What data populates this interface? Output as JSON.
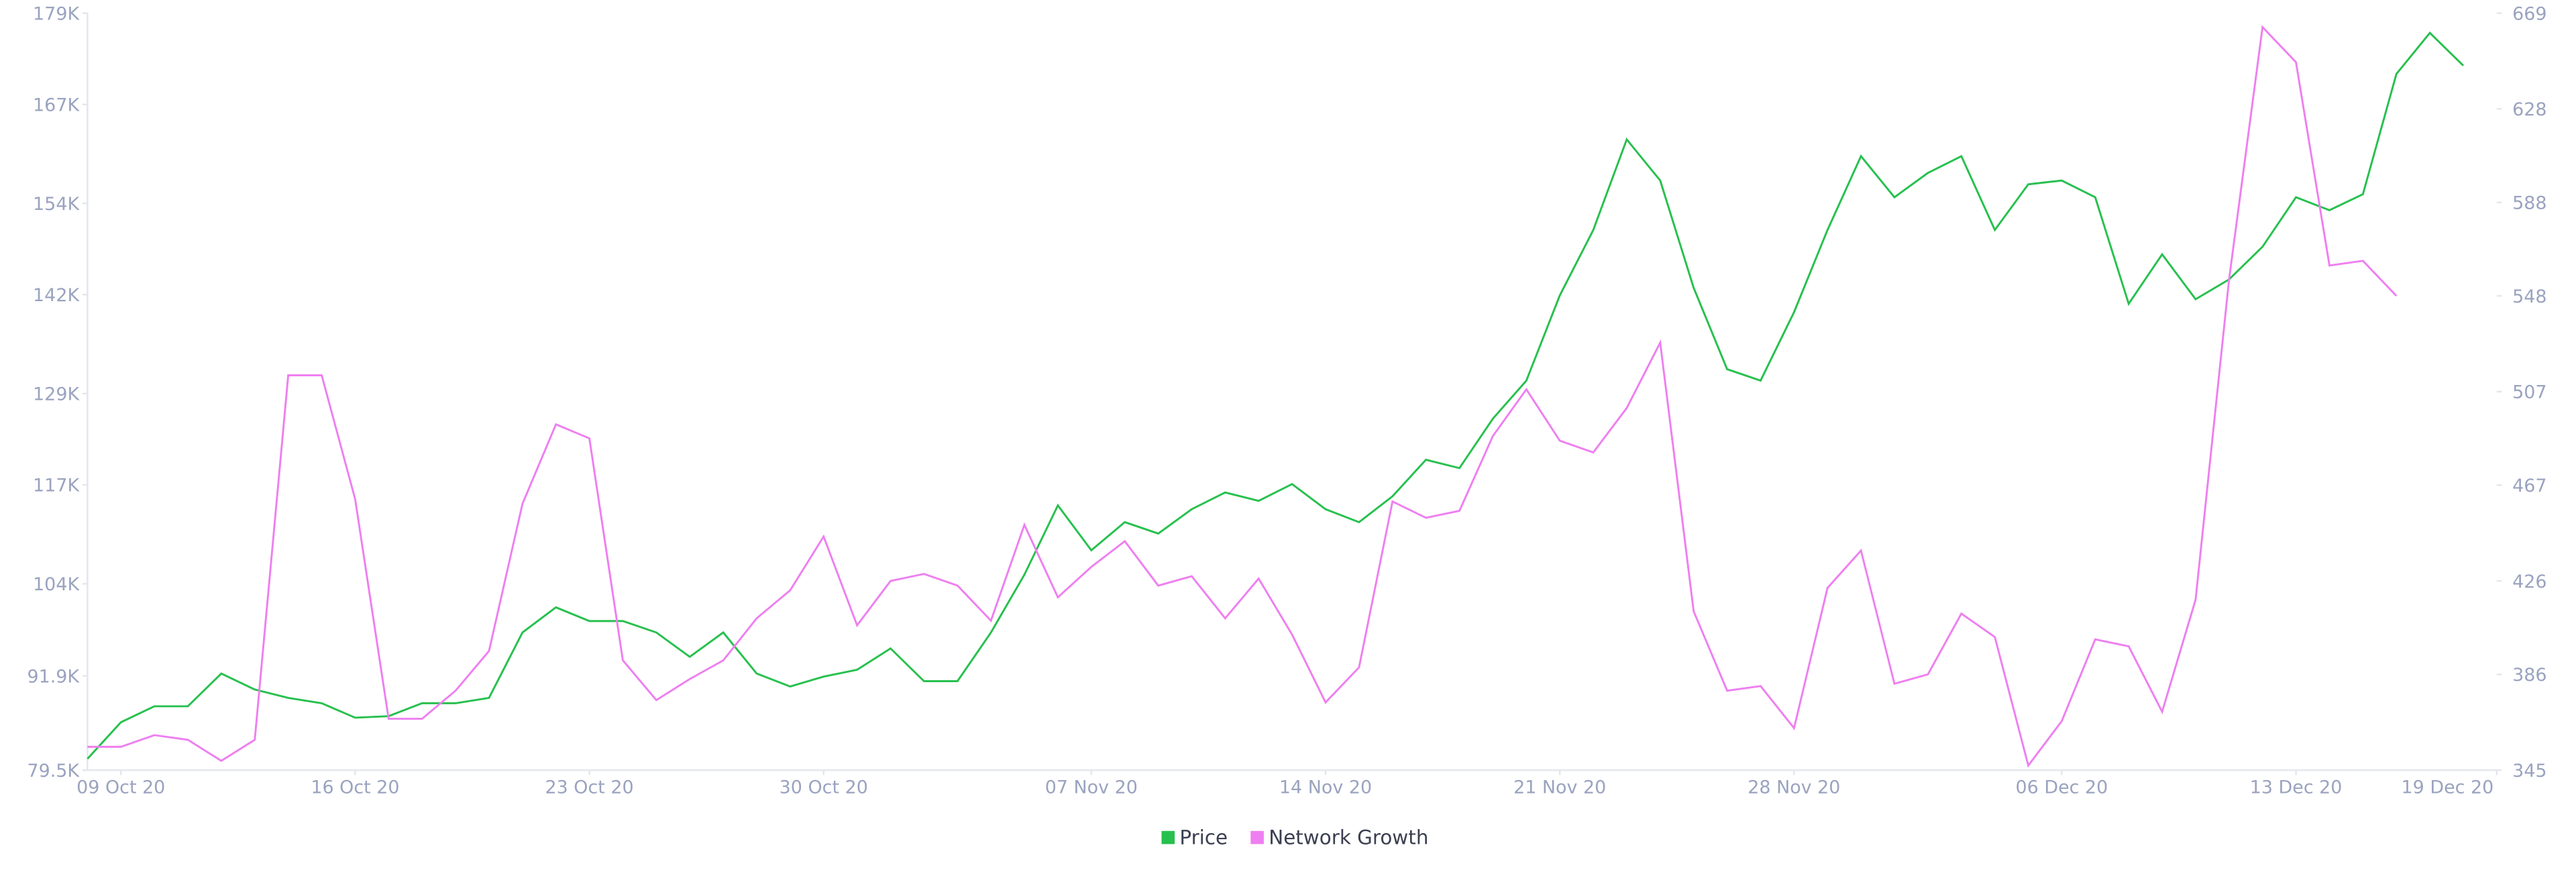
{
  "chart_data": {
    "type": "line",
    "x": [
      "2020-10-08",
      "2020-10-09",
      "2020-10-10",
      "2020-10-11",
      "2020-10-12",
      "2020-10-13",
      "2020-10-14",
      "2020-10-15",
      "2020-10-16",
      "2020-10-17",
      "2020-10-18",
      "2020-10-19",
      "2020-10-20",
      "2020-10-21",
      "2020-10-22",
      "2020-10-23",
      "2020-10-24",
      "2020-10-25",
      "2020-10-26",
      "2020-10-27",
      "2020-10-28",
      "2020-10-29",
      "2020-10-30",
      "2020-10-31",
      "2020-11-01",
      "2020-11-02",
      "2020-11-03",
      "2020-11-04",
      "2020-11-05",
      "2020-11-06",
      "2020-11-07",
      "2020-11-08",
      "2020-11-09",
      "2020-11-10",
      "2020-11-11",
      "2020-11-12",
      "2020-11-13",
      "2020-11-14",
      "2020-11-15",
      "2020-11-16",
      "2020-11-17",
      "2020-11-18",
      "2020-11-19",
      "2020-11-20",
      "2020-11-21",
      "2020-11-22",
      "2020-11-23",
      "2020-11-24",
      "2020-11-25",
      "2020-11-26",
      "2020-11-27",
      "2020-11-28",
      "2020-11-29",
      "2020-11-30",
      "2020-12-01",
      "2020-12-02",
      "2020-12-03",
      "2020-12-04",
      "2020-12-05",
      "2020-12-06",
      "2020-12-07",
      "2020-12-08",
      "2020-12-09",
      "2020-12-10",
      "2020-12-11",
      "2020-12-12",
      "2020-12-13",
      "2020-12-14",
      "2020-12-15",
      "2020-12-16",
      "2020-12-17",
      "2020-12-18"
    ],
    "series": [
      {
        "name": "Price",
        "color": "#27c04e",
        "axis": "y",
        "values": [
          81000,
          85800,
          87900,
          87900,
          92200,
          90100,
          89000,
          88300,
          86400,
          86600,
          88300,
          88300,
          89000,
          97600,
          100900,
          99100,
          99100,
          97600,
          94400,
          97600,
          92200,
          90500,
          91800,
          92700,
          95500,
          91200,
          91200,
          97600,
          105200,
          114300,
          108400,
          112100,
          110600,
          113800,
          116000,
          114900,
          117100,
          113800,
          112100,
          115500,
          120300,
          119200,
          125700,
          130700,
          141900,
          150500,
          162400,
          157000,
          142900,
          132200,
          130700,
          139700,
          150500,
          160200,
          154800,
          158000,
          160200,
          150500,
          156500,
          157000,
          154800,
          140800,
          147300,
          141400,
          144000,
          148300,
          154800,
          153100,
          155200,
          171000,
          176400,
          172100
        ]
      },
      {
        "name": "Network Growth",
        "color": "#ee7ff0",
        "axis": "y2",
        "values": [
          355,
          355,
          360,
          358,
          349,
          358,
          514,
          514,
          461,
          367,
          367,
          379,
          396,
          459,
          493,
          487,
          392,
          375,
          384,
          392,
          410,
          422,
          445,
          407,
          426,
          429,
          424,
          409,
          450,
          419,
          432,
          443,
          424,
          428,
          410,
          427,
          403,
          374,
          389,
          460,
          453,
          456,
          488,
          508,
          486,
          481,
          500,
          528,
          413,
          379,
          381,
          363,
          423,
          439,
          382,
          386,
          412,
          402,
          347,
          366,
          401,
          398,
          370,
          418,
          555,
          663,
          648,
          561,
          563,
          548,
          null,
          null
        ]
      }
    ],
    "xlim": [
      "2020-10-08",
      "2020-12-19"
    ],
    "xticks": [
      {
        "value": "2020-10-09",
        "label": "09 Oct 20"
      },
      {
        "value": "2020-10-16",
        "label": "16 Oct 20"
      },
      {
        "value": "2020-10-23",
        "label": "23 Oct 20"
      },
      {
        "value": "2020-10-30",
        "label": "30 Oct 20"
      },
      {
        "value": "2020-11-07",
        "label": "07 Nov 20"
      },
      {
        "value": "2020-11-14",
        "label": "14 Nov 20"
      },
      {
        "value": "2020-11-21",
        "label": "21 Nov 20"
      },
      {
        "value": "2020-11-28",
        "label": "28 Nov 20"
      },
      {
        "value": "2020-12-06",
        "label": "06 Dec 20"
      },
      {
        "value": "2020-12-13",
        "label": "13 Dec 20"
      },
      {
        "value": "2020-12-19",
        "label": "19 Dec 20"
      }
    ],
    "ylim": [
      79500,
      179000
    ],
    "yticks": [
      {
        "value": 79500,
        "label": "79.5K"
      },
      {
        "value": 91900,
        "label": "91.9K"
      },
      {
        "value": 104000,
        "label": "104K"
      },
      {
        "value": 117000,
        "label": "117K"
      },
      {
        "value": 129000,
        "label": "129K"
      },
      {
        "value": 142000,
        "label": "142K"
      },
      {
        "value": 154000,
        "label": "154K"
      },
      {
        "value": 167000,
        "label": "167K"
      },
      {
        "value": 179000,
        "label": "179K"
      }
    ],
    "y2lim": [
      345,
      669
    ],
    "y2ticks": [
      345,
      386,
      426,
      467,
      507,
      548,
      588,
      628,
      669
    ],
    "legend": "bottom"
  }
}
